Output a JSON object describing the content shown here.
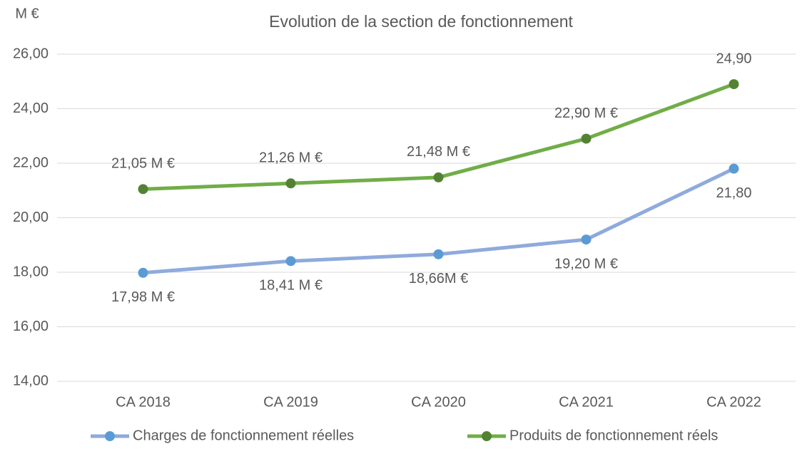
{
  "chart_data": {
    "type": "line",
    "title": "Evolution de la section de fonctionnement",
    "y_axis_label": "M €",
    "categories": [
      "CA 2018",
      "CA 2019",
      "CA 2020",
      "CA 2021",
      "CA 2022"
    ],
    "series": [
      {
        "name": "Charges de fonctionnement réelles",
        "color": "#8faadc",
        "marker_color": "#5b9bd5",
        "values": [
          17.98,
          18.41,
          18.66,
          19.2,
          21.8
        ],
        "value_labels": [
          "17,98 M €",
          "18,41 M €",
          "18,66M €",
          "19,20 M €",
          "21,80"
        ],
        "label_position": "below"
      },
      {
        "name": "Produits de fonctionnement réels",
        "color": "#70ad47",
        "marker_color": "#548235",
        "values": [
          21.05,
          21.26,
          21.48,
          22.9,
          24.9
        ],
        "value_labels": [
          "21,05 M €",
          "21,26 M €",
          "21,48 M €",
          "22,90 M €",
          "24,90"
        ],
        "label_position": "above"
      }
    ],
    "ylim": [
      14,
      26
    ],
    "yticks": [
      {
        "value": 14,
        "label": "14,00"
      },
      {
        "value": 16,
        "label": "16,00"
      },
      {
        "value": 18,
        "label": "18,00"
      },
      {
        "value": 20,
        "label": "20,00"
      },
      {
        "value": 22,
        "label": "22,00"
      },
      {
        "value": 24,
        "label": "24,00"
      },
      {
        "value": 26,
        "label": "26,00"
      }
    ],
    "grid": true,
    "legend": "bottom"
  }
}
